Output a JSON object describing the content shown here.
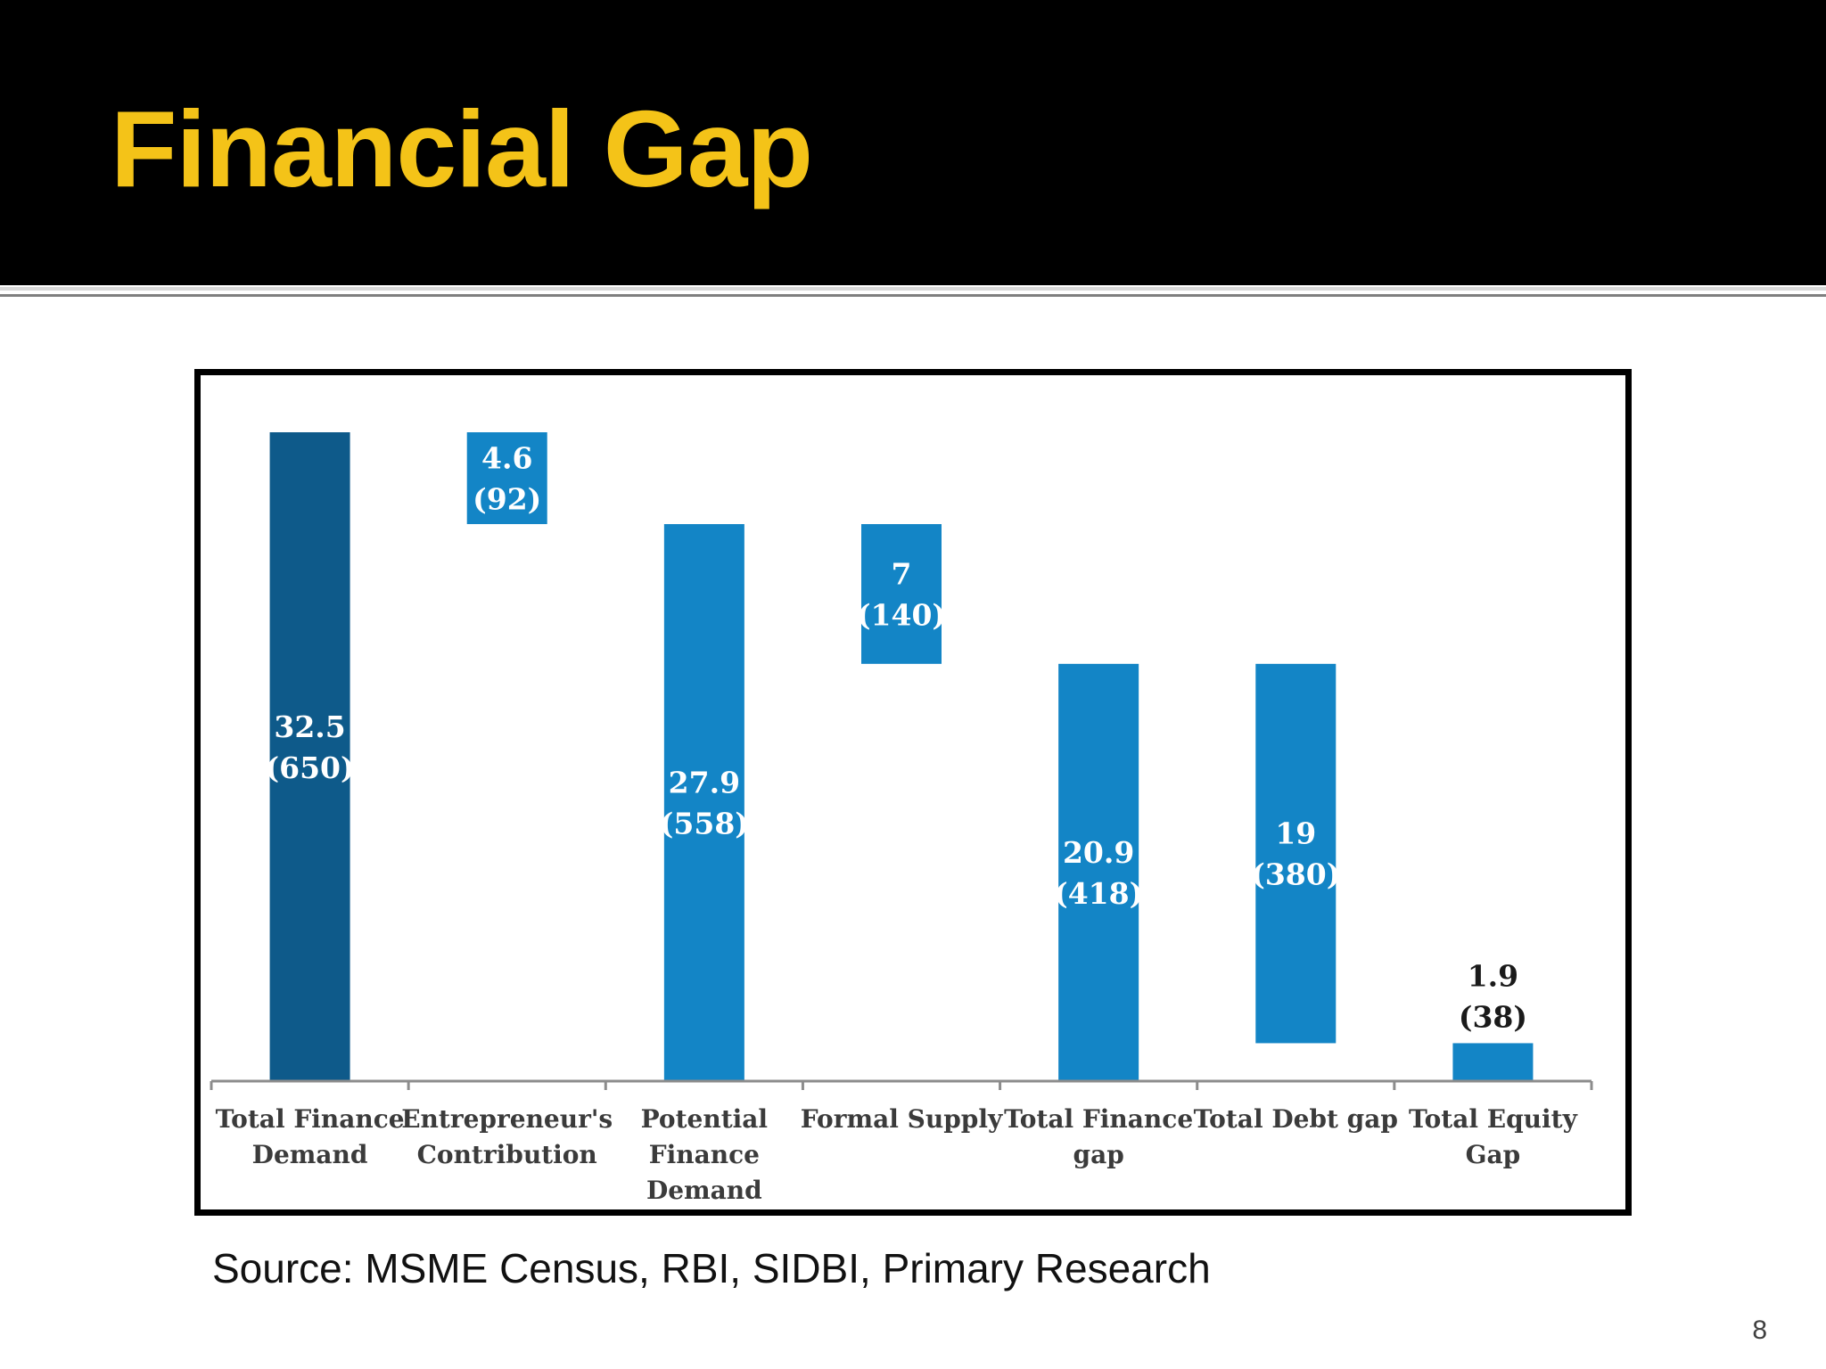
{
  "slide": {
    "title": "Financial Gap",
    "source": "Source: MSME Census, RBI, SIDBI, Primary Research",
    "page_number": "8"
  },
  "colors": {
    "header_background": "#000000",
    "title_color": "#f4c318",
    "bar_dark": "#0e5a8a",
    "bar_light": "#1385c6"
  },
  "chart_data": {
    "type": "bar",
    "subtype": "waterfall",
    "title": "",
    "xlabel": "",
    "ylabel": "",
    "ylim": [
      0,
      32.5
    ],
    "grid": false,
    "legend": "none",
    "categories": [
      [
        "Total Finance",
        "Demand"
      ],
      [
        "Entrepreneur's",
        "Contribution"
      ],
      [
        "Potential",
        "Finance",
        "Demand"
      ],
      [
        "Formal Supply"
      ],
      [
        "Total Finance",
        "gap"
      ],
      [
        "Total Debt gap"
      ],
      [
        "Total Equity",
        "Gap"
      ]
    ],
    "bars": [
      {
        "value": 32.5,
        "base": 0,
        "label": [
          "32.5",
          "(650)"
        ],
        "color": "#0e5a8a",
        "label_color": "#ffffff",
        "label_position": "inside"
      },
      {
        "value": 4.6,
        "base": 27.9,
        "label": [
          "4.6",
          "(92)"
        ],
        "color": "#1385c6",
        "label_color": "#ffffff",
        "label_position": "inside"
      },
      {
        "value": 27.9,
        "base": 0,
        "label": [
          "27.9",
          "(558)"
        ],
        "color": "#1385c6",
        "label_color": "#ffffff",
        "label_position": "inside"
      },
      {
        "value": 7,
        "base": 20.9,
        "label": [
          "7",
          "(140)"
        ],
        "color": "#1385c6",
        "label_color": "#ffffff",
        "label_position": "inside"
      },
      {
        "value": 20.9,
        "base": 0,
        "label": [
          "20.9",
          "(418)"
        ],
        "color": "#1385c6",
        "label_color": "#ffffff",
        "label_position": "inside"
      },
      {
        "value": 19,
        "base": 1.9,
        "label": [
          "19",
          "(380)"
        ],
        "color": "#1385c6",
        "label_color": "#ffffff",
        "label_position": "inside"
      },
      {
        "value": 1.9,
        "base": 0,
        "label": [
          "1.9",
          "(38)"
        ],
        "color": "#1385c6",
        "label_color": "#1a1a1a",
        "label_position": "above"
      }
    ]
  }
}
